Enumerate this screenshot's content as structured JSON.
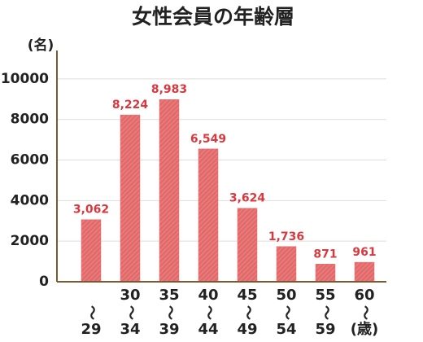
{
  "chart_data": {
    "type": "bar",
    "title": "女性会員の年齢層",
    "y_unit": "(名)",
    "categories": [
      [
        "〜",
        "29"
      ],
      [
        "30",
        "〜",
        "34"
      ],
      [
        "35",
        "〜",
        "39"
      ],
      [
        "40",
        "〜",
        "44"
      ],
      [
        "45",
        "〜",
        "49"
      ],
      [
        "50",
        "〜",
        "54"
      ],
      [
        "55",
        "〜",
        "59"
      ],
      [
        "60",
        "〜",
        "(歳)"
      ]
    ],
    "values": [
      3062,
      8224,
      8983,
      6549,
      3624,
      1736,
      871,
      961
    ],
    "value_labels": [
      "3,062",
      "8,224",
      "8,983",
      "6,549",
      "3,624",
      "1,736",
      "871",
      "961"
    ],
    "color": "#e26a6a",
    "ylim": [
      0,
      11400
    ],
    "yticks": [
      0,
      2000,
      4000,
      6000,
      8000,
      10000
    ],
    "grid": true
  }
}
